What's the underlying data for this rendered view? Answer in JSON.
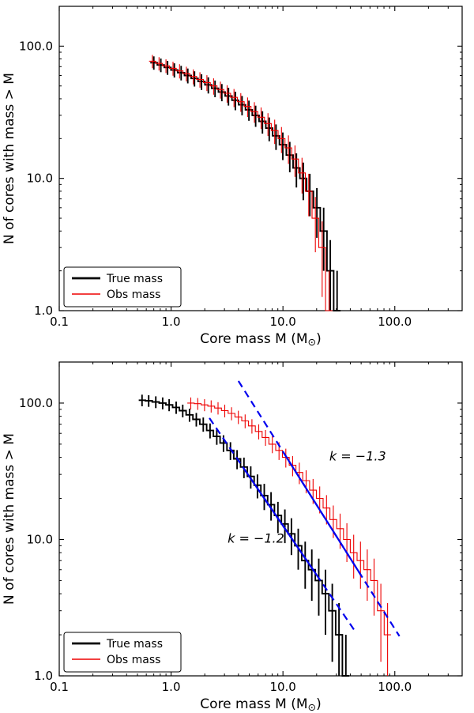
{
  "figure": {
    "background": "#ffffff"
  },
  "chart_data": [
    {
      "type": "line",
      "name": "top-panel",
      "title": "",
      "xlabel": "Core mass M (M⊙)",
      "ylabel": "N of cores with mass > M",
      "xscale": "log",
      "yscale": "log",
      "xlim": [
        0.1,
        400
      ],
      "ylim": [
        1,
        200
      ],
      "grid": false,
      "xticks": [
        {
          "v": 0.1,
          "label": "0.1"
        },
        {
          "v": 1,
          "label": "1.0"
        },
        {
          "v": 10,
          "label": "10.0"
        },
        {
          "v": 100,
          "label": "100.0"
        }
      ],
      "yticks": [
        {
          "v": 1,
          "label": "1.0"
        },
        {
          "v": 10,
          "label": "10.0"
        },
        {
          "v": 100,
          "label": "100.0"
        }
      ],
      "series": [
        {
          "name": "True mass",
          "color": "#000000",
          "line_width": 1.9,
          "style": "steps-mid",
          "error_bars": "poisson",
          "x": [
            0.7,
            0.81,
            0.93,
            1.07,
            1.23,
            1.41,
            1.62,
            1.87,
            2.15,
            2.47,
            2.84,
            3.26,
            3.75,
            4.31,
            4.96,
            5.7,
            6.56,
            7.54,
            8.67,
            9.97,
            11.5,
            13.2,
            15.2,
            17.4,
            20.1,
            23.1,
            26.5,
            30.5
          ],
          "y": [
            75,
            72,
            69,
            66,
            63,
            60,
            57,
            54,
            51,
            48,
            45,
            42,
            39,
            36,
            33,
            30,
            27,
            24,
            21,
            18,
            15,
            12,
            10,
            8,
            6,
            4,
            2,
            1
          ]
        },
        {
          "name": "Obs mass",
          "color": "#ee0000",
          "line_width": 1.1,
          "style": "steps-mid",
          "error_bars": "poisson",
          "x": [
            0.68,
            0.78,
            0.9,
            1.04,
            1.19,
            1.37,
            1.58,
            1.81,
            2.09,
            2.4,
            2.76,
            3.17,
            3.65,
            4.2,
            4.83,
            5.55,
            6.38,
            7.34,
            8.44,
            9.7,
            11.2,
            12.8,
            14.8,
            17.0,
            19.5,
            22.4,
            25.8
          ],
          "y": [
            77,
            74,
            71,
            68,
            65,
            62,
            59,
            56,
            53,
            50,
            47,
            44,
            41,
            38,
            35,
            32,
            29,
            26,
            23,
            20,
            17,
            14,
            11,
            8,
            5,
            3,
            1
          ]
        }
      ],
      "legend": {
        "location": "lower left",
        "entries": [
          "True mass",
          "Obs mass"
        ]
      }
    },
    {
      "type": "line",
      "name": "bottom-panel",
      "title": "",
      "xlabel": "Core mass M (M⊙)",
      "ylabel": "N of cores with mass > M",
      "xscale": "log",
      "yscale": "log",
      "xlim": [
        0.1,
        400
      ],
      "ylim": [
        1,
        200
      ],
      "grid": false,
      "xticks": [
        {
          "v": 0.1,
          "label": "0.1"
        },
        {
          "v": 1,
          "label": "1.0"
        },
        {
          "v": 10,
          "label": "10.0"
        },
        {
          "v": 100,
          "label": "100.0"
        }
      ],
      "yticks": [
        {
          "v": 1,
          "label": "1.0"
        },
        {
          "v": 10,
          "label": "10.0"
        },
        {
          "v": 100,
          "label": "100.0"
        }
      ],
      "series": [
        {
          "name": "True mass",
          "color": "#000000",
          "line_width": 1.9,
          "style": "steps-mid",
          "error_bars": "poisson",
          "x": [
            0.55,
            0.63,
            0.73,
            0.84,
            0.96,
            1.11,
            1.27,
            1.46,
            1.68,
            1.94,
            2.23,
            2.56,
            2.94,
            3.39,
            3.89,
            4.48,
            5.15,
            5.92,
            6.81,
            7.83,
            9.01,
            10.4,
            11.9,
            13.7,
            15.8,
            18.1,
            20.9,
            24.0,
            27.6,
            31.7,
            36.5
          ],
          "y": [
            105,
            104,
            102,
            100,
            97,
            93,
            88,
            82,
            76,
            70,
            63,
            57,
            51,
            45,
            39,
            34,
            29,
            25,
            21,
            18,
            15,
            13,
            11,
            9,
            7,
            6,
            5,
            4,
            3,
            2,
            1
          ]
        },
        {
          "name": "Obs mass",
          "color": "#ee0000",
          "line_width": 1.1,
          "style": "steps-mid",
          "error_bars": "poisson",
          "x": [
            1.5,
            1.73,
            1.99,
            2.28,
            2.63,
            3.02,
            3.47,
            3.99,
            4.59,
            5.28,
            6.07,
            6.98,
            8.03,
            9.23,
            10.6,
            12.2,
            14.0,
            16.1,
            18.6,
            21.3,
            24.5,
            28.2,
            32.4,
            37.3,
            42.9,
            49.3,
            56.7,
            65.2,
            75.0,
            86.2
          ],
          "y": [
            100,
            99,
            97,
            95,
            92,
            88,
            84,
            79,
            74,
            68,
            62,
            56,
            50,
            45,
            40,
            35,
            31,
            27,
            23,
            20,
            17,
            14,
            12,
            10,
            8,
            7,
            6,
            5,
            3,
            2
          ]
        }
      ],
      "fits": [
        {
          "name": "fit-true-mass",
          "slope_k": -1.2,
          "amplitude": 200,
          "color": "#0000ee",
          "solid_range": [
            4.5,
            20
          ],
          "dashed_range": [
            2.2,
            45
          ]
        },
        {
          "name": "fit-obs-mass",
          "slope_k": -1.3,
          "amplitude": 880,
          "color": "#0000ee",
          "solid_range": [
            10,
            50
          ],
          "dashed_range": [
            4.0,
            110
          ]
        }
      ],
      "annotations": [
        {
          "text": "k = −1.2",
          "x": 3.2,
          "y": 9.5,
          "color": "#000000"
        },
        {
          "text": "k = −1.3",
          "x": 26,
          "y": 38,
          "color": "#ee0000"
        }
      ],
      "legend": {
        "location": "lower left",
        "entries": [
          "True mass",
          "Obs mass"
        ]
      }
    }
  ]
}
